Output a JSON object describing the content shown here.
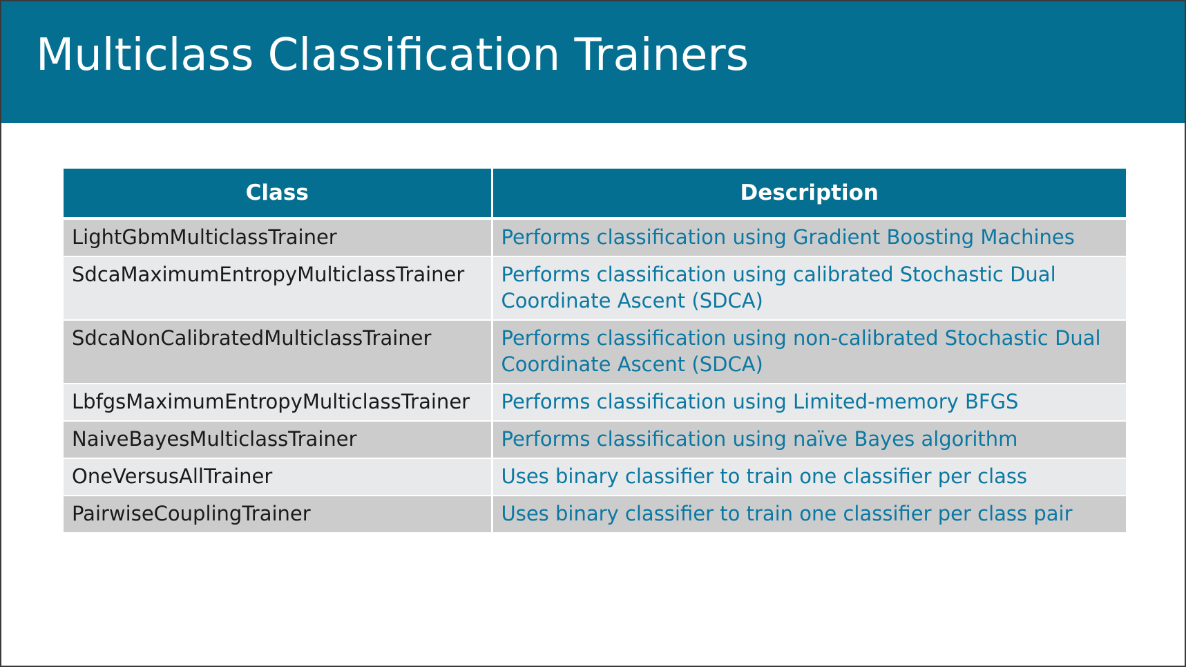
{
  "slide": {
    "title": "Multiclass Classification Trainers"
  },
  "table": {
    "headers": {
      "class": "Class",
      "description": "Description"
    },
    "rows": [
      {
        "class": "LightGbmMulticlassTrainer",
        "description": "Performs classification using Gradient Boosting Machines"
      },
      {
        "class": "SdcaMaximumEntropyMulticlassTrainer",
        "description": "Performs classification using calibrated Stochastic Dual Coordinate Ascent (SDCA)"
      },
      {
        "class": "SdcaNonCalibratedMulticlassTrainer",
        "description": "Performs classification using non-calibrated Stochastic Dual Coordinate Ascent (SDCA)"
      },
      {
        "class": "LbfgsMaximumEntropyMulticlassTrainer",
        "description": "Performs classification using Limited-memory BFGS"
      },
      {
        "class": "NaiveBayesMulticlassTrainer",
        "description": "Performs classification using naïve Bayes algorithm"
      },
      {
        "class": "OneVersusAllTrainer",
        "description": "Uses binary classifier to train one classifier per class"
      },
      {
        "class": "PairwiseCouplingTrainer",
        "description": "Uses binary classifier to train one classifier per class pair"
      }
    ]
  },
  "colors": {
    "accent": "#046f90",
    "description_text": "#0b78a2",
    "row_dark": "#cccccd",
    "row_light": "#e8e9ea"
  }
}
